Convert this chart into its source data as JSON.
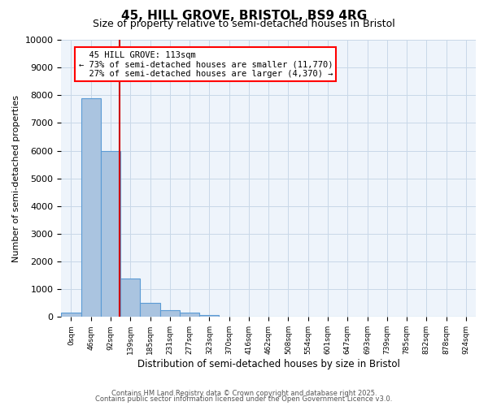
{
  "title1": "45, HILL GROVE, BRISTOL, BS9 4RG",
  "title2": "Size of property relative to semi-detached houses in Bristol",
  "xlabel": "Distribution of semi-detached houses by size in Bristol",
  "ylabel": "Number of semi-detached properties",
  "bin_labels": [
    "0sqm",
    "46sqm",
    "92sqm",
    "139sqm",
    "185sqm",
    "231sqm",
    "277sqm",
    "323sqm",
    "370sqm",
    "416sqm",
    "462sqm",
    "508sqm",
    "554sqm",
    "601sqm",
    "647sqm",
    "693sqm",
    "739sqm",
    "785sqm",
    "832sqm",
    "878sqm",
    "924sqm"
  ],
  "bar_values": [
    150,
    7900,
    6000,
    1400,
    500,
    230,
    150,
    70,
    0,
    0,
    0,
    0,
    0,
    0,
    0,
    0,
    0,
    0,
    0,
    0,
    0
  ],
  "bar_color": "#aac4e0",
  "bar_edge_color": "#5b9bd5",
  "property_line_x": 2.46,
  "property_size": "113sqm",
  "pct_smaller": 73,
  "n_smaller": 11770,
  "pct_larger": 27,
  "n_larger": 4370,
  "red_line_color": "#cc0000",
  "ylim": [
    0,
    10000
  ],
  "yticks": [
    0,
    1000,
    2000,
    3000,
    4000,
    5000,
    6000,
    7000,
    8000,
    9000,
    10000
  ],
  "grid_color": "#c8d8e8",
  "background_color": "#eef4fb",
  "footer1": "Contains HM Land Registry data © Crown copyright and database right 2025.",
  "footer2": "Contains public sector information licensed under the Open Government Licence v3.0."
}
